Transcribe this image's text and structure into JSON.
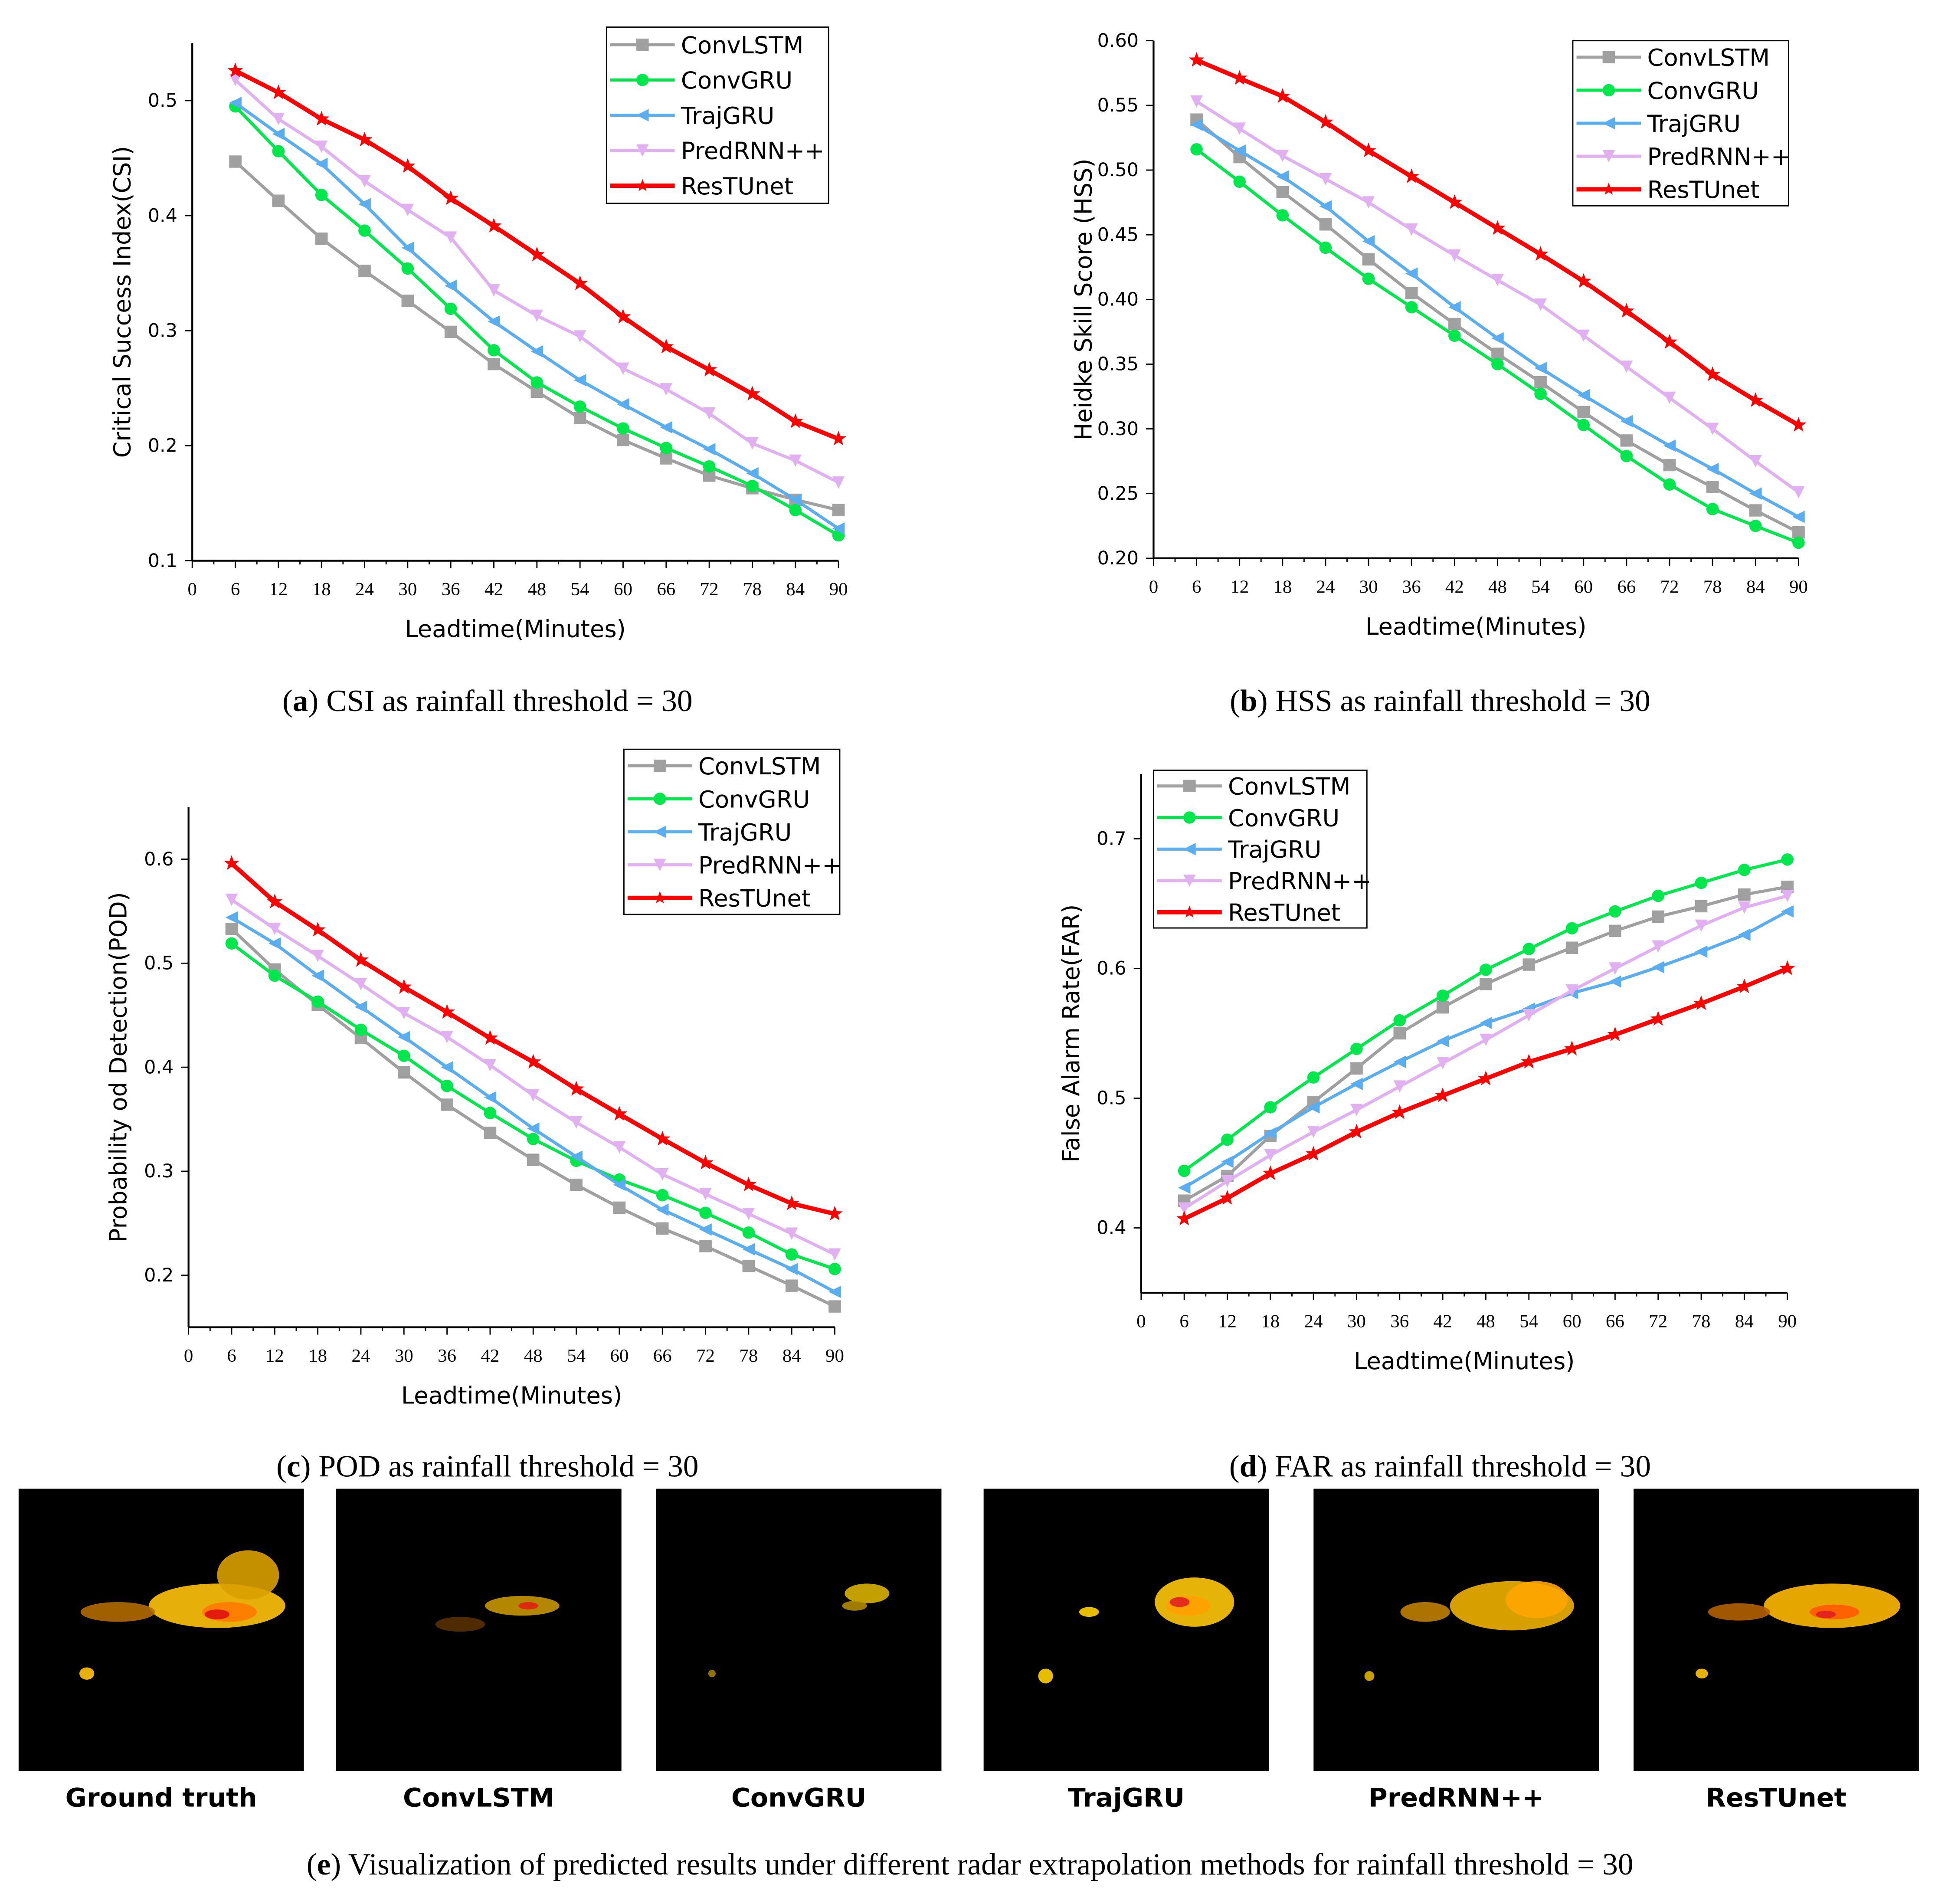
{
  "chart_data": [
    {
      "id": "a",
      "type": "line",
      "title": "",
      "xlabel": "Leadtime(Minutes)",
      "ylabel": "Critical Success Index(CSI)",
      "x": [
        6,
        12,
        18,
        24,
        30,
        36,
        42,
        48,
        54,
        60,
        66,
        72,
        78,
        84,
        90
      ],
      "xticks": [
        "0",
        "6",
        "12",
        "18",
        "24",
        "30",
        "36",
        "42",
        "48",
        "54",
        "60",
        "66",
        "72",
        "78",
        "84",
        "90"
      ],
      "yticks": [
        "0.1",
        "0.2",
        "0.3",
        "0.4",
        "0.5"
      ],
      "ylim": [
        0.1,
        0.55
      ],
      "xlim": [
        0,
        90
      ],
      "legend": "top-right",
      "series": [
        {
          "name": "ConvLSTM",
          "values": [
            0.447,
            0.413,
            0.38,
            0.352,
            0.326,
            0.299,
            0.271,
            0.247,
            0.224,
            0.205,
            0.189,
            0.174,
            0.163,
            0.153,
            0.144
          ]
        },
        {
          "name": "ConvGRU",
          "values": [
            0.495,
            0.456,
            0.418,
            0.387,
            0.354,
            0.319,
            0.283,
            0.255,
            0.234,
            0.215,
            0.198,
            0.182,
            0.165,
            0.144,
            0.122
          ]
        },
        {
          "name": "TrajGRU",
          "values": [
            0.498,
            0.471,
            0.445,
            0.41,
            0.372,
            0.339,
            0.308,
            0.282,
            0.257,
            0.236,
            0.216,
            0.197,
            0.176,
            0.153,
            0.128
          ]
        },
        {
          "name": "PredRNN++",
          "values": [
            0.518,
            0.484,
            0.46,
            0.43,
            0.405,
            0.381,
            0.335,
            0.313,
            0.295,
            0.267,
            0.249,
            0.228,
            0.202,
            0.187,
            0.168
          ]
        },
        {
          "name": "ResTUnet",
          "values": [
            0.526,
            0.507,
            0.484,
            0.466,
            0.443,
            0.415,
            0.391,
            0.366,
            0.341,
            0.312,
            0.286,
            0.266,
            0.245,
            0.221,
            0.206
          ]
        }
      ]
    },
    {
      "id": "b",
      "type": "line",
      "title": "",
      "xlabel": "Leadtime(Minutes)",
      "ylabel": "Heidke Skill Score (HSS)",
      "x": [
        6,
        12,
        18,
        24,
        30,
        36,
        42,
        48,
        54,
        60,
        66,
        72,
        78,
        84,
        90
      ],
      "xticks": [
        "0",
        "6",
        "12",
        "18",
        "24",
        "30",
        "36",
        "42",
        "48",
        "54",
        "60",
        "66",
        "72",
        "78",
        "84",
        "90"
      ],
      "yticks": [
        "0.20",
        "0.25",
        "0.30",
        "0.35",
        "0.40",
        "0.45",
        "0.50",
        "0.55",
        "0.60"
      ],
      "ylim": [
        0.2,
        0.6
      ],
      "xlim": [
        0,
        90
      ],
      "legend": "top-right",
      "series": [
        {
          "name": "ConvLSTM",
          "values": [
            0.539,
            0.51,
            0.483,
            0.458,
            0.431,
            0.405,
            0.381,
            0.358,
            0.336,
            0.313,
            0.291,
            0.272,
            0.255,
            0.237,
            0.22
          ]
        },
        {
          "name": "ConvGRU",
          "values": [
            0.516,
            0.491,
            0.465,
            0.44,
            0.416,
            0.394,
            0.372,
            0.35,
            0.327,
            0.303,
            0.279,
            0.257,
            0.238,
            0.225,
            0.212
          ]
        },
        {
          "name": "TrajGRU",
          "values": [
            0.535,
            0.515,
            0.495,
            0.472,
            0.445,
            0.42,
            0.394,
            0.37,
            0.347,
            0.326,
            0.306,
            0.287,
            0.269,
            0.25,
            0.232
          ]
        },
        {
          "name": "PredRNN++",
          "values": [
            0.553,
            0.532,
            0.511,
            0.493,
            0.475,
            0.454,
            0.434,
            0.415,
            0.396,
            0.372,
            0.348,
            0.324,
            0.3,
            0.275,
            0.251
          ]
        },
        {
          "name": "ResTUnet",
          "values": [
            0.585,
            0.571,
            0.557,
            0.537,
            0.515,
            0.495,
            0.475,
            0.455,
            0.435,
            0.414,
            0.391,
            0.367,
            0.342,
            0.322,
            0.303
          ]
        }
      ]
    },
    {
      "id": "c",
      "type": "line",
      "title": "",
      "xlabel": "Leadtime(Minutes)",
      "ylabel": "Probability od Detection(POD)",
      "x": [
        6,
        12,
        18,
        24,
        30,
        36,
        42,
        48,
        54,
        60,
        66,
        72,
        78,
        84,
        90
      ],
      "xticks": [
        "0",
        "6",
        "12",
        "18",
        "24",
        "30",
        "36",
        "42",
        "48",
        "54",
        "60",
        "66",
        "72",
        "78",
        "84",
        "90"
      ],
      "yticks": [
        "0.2",
        "0.3",
        "0.4",
        "0.5",
        "0.6"
      ],
      "ylim": [
        0.15,
        0.65
      ],
      "xlim": [
        0,
        90
      ],
      "legend": "top-right",
      "series": [
        {
          "name": "ConvLSTM",
          "values": [
            0.533,
            0.494,
            0.46,
            0.428,
            0.395,
            0.364,
            0.337,
            0.311,
            0.287,
            0.265,
            0.245,
            0.228,
            0.209,
            0.19,
            0.17
          ]
        },
        {
          "name": "ConvGRU",
          "values": [
            0.519,
            0.488,
            0.463,
            0.436,
            0.411,
            0.382,
            0.356,
            0.331,
            0.31,
            0.292,
            0.277,
            0.26,
            0.241,
            0.22,
            0.206
          ]
        },
        {
          "name": "TrajGRU",
          "values": [
            0.544,
            0.519,
            0.488,
            0.458,
            0.429,
            0.4,
            0.371,
            0.341,
            0.314,
            0.287,
            0.263,
            0.244,
            0.225,
            0.206,
            0.184
          ]
        },
        {
          "name": "PredRNN++",
          "values": [
            0.561,
            0.533,
            0.507,
            0.48,
            0.452,
            0.429,
            0.402,
            0.373,
            0.347,
            0.323,
            0.297,
            0.278,
            0.259,
            0.24,
            0.22
          ]
        },
        {
          "name": "ResTUnet",
          "values": [
            0.596,
            0.559,
            0.532,
            0.503,
            0.477,
            0.453,
            0.428,
            0.405,
            0.379,
            0.355,
            0.331,
            0.308,
            0.287,
            0.269,
            0.259
          ]
        }
      ]
    },
    {
      "id": "d",
      "type": "line",
      "title": "",
      "xlabel": "Leadtime(Minutes)",
      "ylabel": "False Alarm Rate(FAR)",
      "x": [
        6,
        12,
        18,
        24,
        30,
        36,
        42,
        48,
        54,
        60,
        66,
        72,
        78,
        84,
        90
      ],
      "xticks": [
        "0",
        "6",
        "12",
        "18",
        "24",
        "30",
        "36",
        "42",
        "48",
        "54",
        "60",
        "66",
        "72",
        "78",
        "84",
        "90"
      ],
      "yticks": [
        "0.4",
        "0.5",
        "0.6",
        "0.7"
      ],
      "ylim": [
        0.35,
        0.75
      ],
      "xlim": [
        0,
        90
      ],
      "legend": "top-left",
      "series": [
        {
          "name": "ConvLSTM",
          "values": [
            0.421,
            0.44,
            0.471,
            0.497,
            0.523,
            0.55,
            0.57,
            0.588,
            0.603,
            0.616,
            0.629,
            0.64,
            0.648,
            0.657,
            0.663
          ]
        },
        {
          "name": "ConvGRU",
          "values": [
            0.444,
            0.468,
            0.493,
            0.516,
            0.538,
            0.56,
            0.579,
            0.599,
            0.615,
            0.631,
            0.644,
            0.656,
            0.666,
            0.676,
            0.684
          ]
        },
        {
          "name": "TrajGRU",
          "values": [
            0.431,
            0.451,
            0.473,
            0.493,
            0.511,
            0.528,
            0.544,
            0.558,
            0.569,
            0.581,
            0.59,
            0.601,
            0.613,
            0.626,
            0.644
          ]
        },
        {
          "name": "PredRNN++",
          "values": [
            0.415,
            0.436,
            0.456,
            0.474,
            0.491,
            0.509,
            0.527,
            0.545,
            0.564,
            0.583,
            0.6,
            0.617,
            0.633,
            0.647,
            0.656
          ]
        },
        {
          "name": "ResTUnet",
          "values": [
            0.407,
            0.423,
            0.442,
            0.457,
            0.474,
            0.489,
            0.502,
            0.515,
            0.528,
            0.538,
            0.549,
            0.561,
            0.573,
            0.586,
            0.6
          ]
        }
      ]
    }
  ],
  "series_colors": {
    "ConvLSTM": "#a0a0a0",
    "ConvGRU": "#00e64d",
    "TrajGRU": "#5aaef0",
    "PredRNN++": "#e0b0f0",
    "ResTUnet": "#ff0000"
  },
  "series_markers": {
    "ConvLSTM": "square",
    "ConvGRU": "circle",
    "TrajGRU": "triangle-left",
    "PredRNN++": "triangle-down",
    "ResTUnet": "star"
  },
  "captions": {
    "a": {
      "letter": "a",
      "text": " CSI as rainfall threshold = 30"
    },
    "b": {
      "letter": "b",
      "text": " HSS as rainfall threshold = 30"
    },
    "c": {
      "letter": "c",
      "text": " POD as rainfall threshold = 30"
    },
    "d": {
      "letter": "d",
      "text": " FAR as rainfall threshold = 30"
    },
    "e": {
      "letter": "e",
      "text": " Visualization of predicted results under different radar extrapolation methods for rainfall threshold = 30"
    }
  },
  "thumbnails": [
    "Ground truth",
    "ConvLSTM",
    "ConvGRU",
    "TrajGRU",
    "PredRNN++",
    "ResTUnet"
  ]
}
